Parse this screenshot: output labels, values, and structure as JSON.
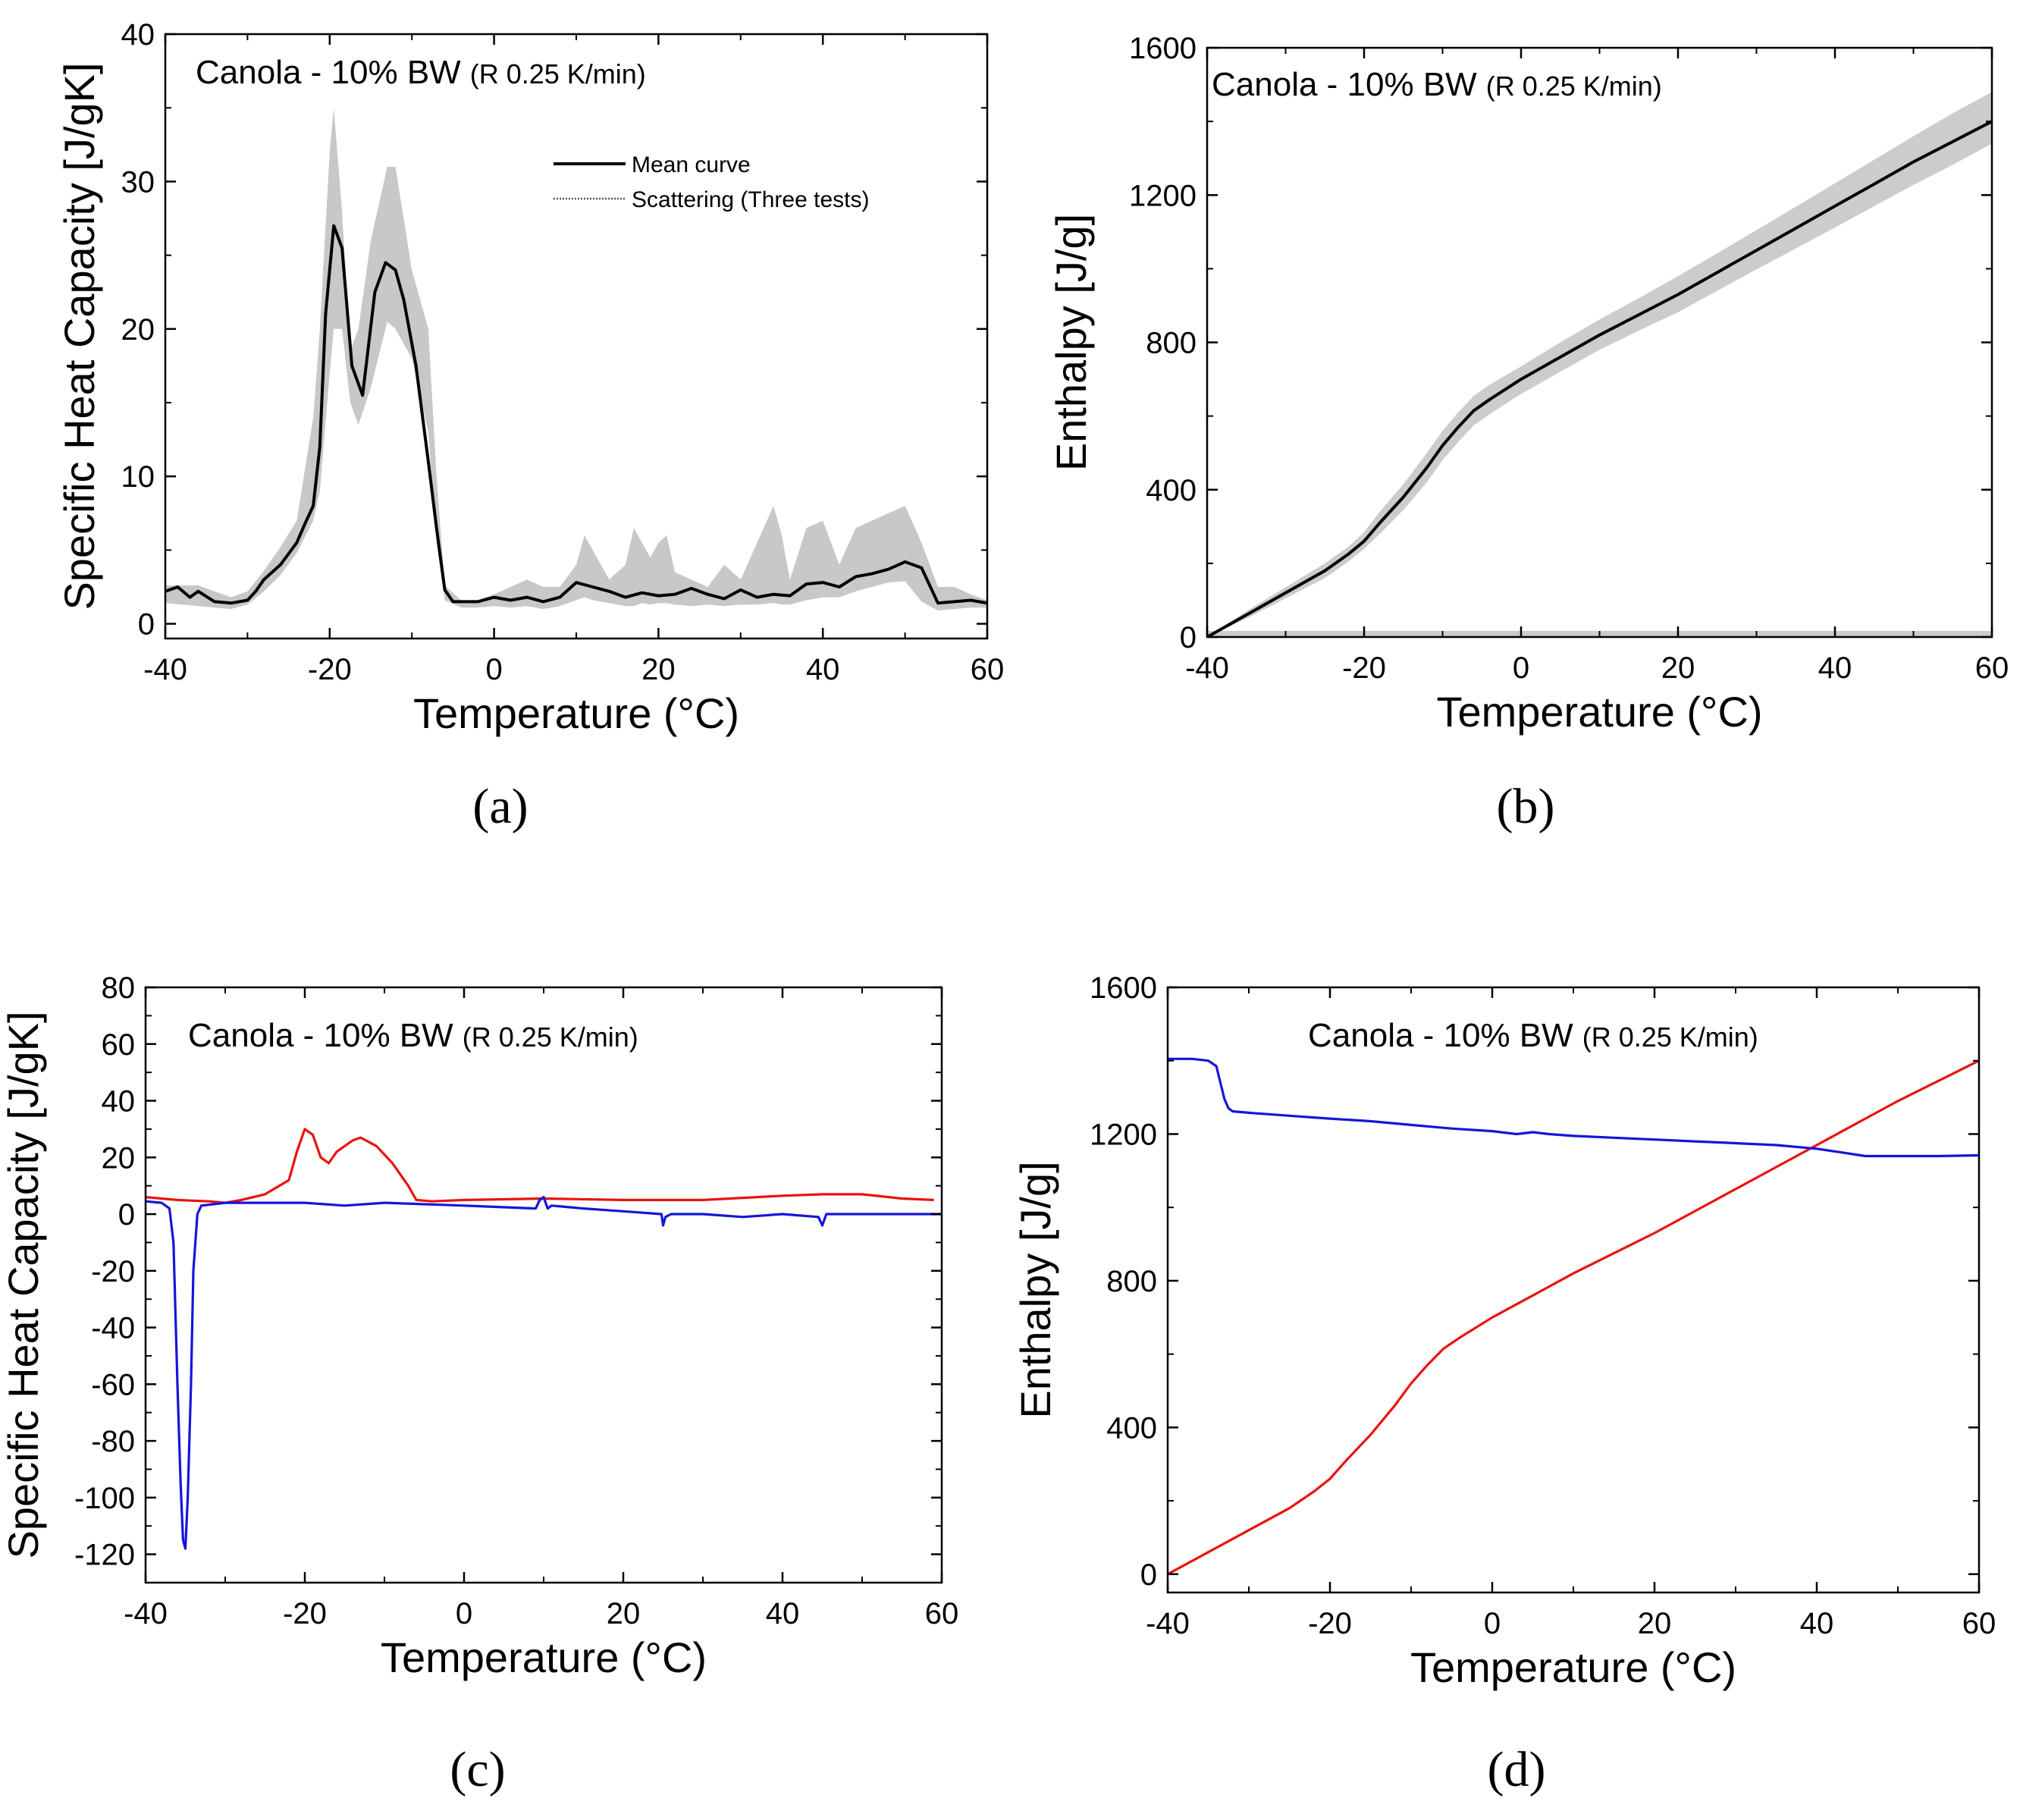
{
  "panels": [
    {
      "id": "a",
      "panel_label": "(a)",
      "annotation_main": "Canola - 10% BW",
      "annotation_rate": "(R 0.25 K/min)",
      "legend": {
        "mean": "Mean curve",
        "scatter": "Scattering (Three tests)"
      },
      "chart_data": {
        "type": "line",
        "xlabel": "Temperature (°C)",
        "ylabel": "Specific Heat Capacity [J/gK]",
        "xlim": [
          -40,
          60
        ],
        "ylim": [
          -1,
          40
        ],
        "xticks": [
          -40,
          -20,
          0,
          20,
          40,
          60
        ],
        "yticks": [
          0,
          10,
          20,
          30,
          40
        ],
        "grid": false,
        "series": [
          {
            "name": "Mean curve",
            "role": "mean",
            "color": "#000000",
            "x": [
              -40,
              -38.5,
              -37,
              -36,
              -34,
              -32,
              -30,
              -29,
              -28,
              -26,
              -24,
              -23,
              -22,
              -21.2,
              -20.5,
              -19.5,
              -18.5,
              -17.3,
              -16,
              -14.5,
              -13.2,
              -12,
              -11,
              -9.5,
              -8,
              -7,
              -6,
              -5,
              -4,
              -2,
              0,
              2,
              4,
              6,
              8,
              10,
              12,
              14,
              16,
              18,
              20,
              22,
              24,
              26,
              28,
              30,
              32,
              34,
              36,
              38,
              40,
              42,
              44,
              46,
              48,
              50,
              52,
              54,
              56,
              58,
              60
            ],
            "y": [
              2.2,
              2.5,
              1.8,
              2.2,
              1.5,
              1.4,
              1.6,
              2.2,
              3.0,
              4.0,
              5.5,
              6.8,
              8.0,
              12.0,
              21.0,
              27.0,
              25.5,
              17.5,
              15.5,
              22.5,
              24.5,
              24.0,
              22.0,
              17.5,
              11.0,
              6.5,
              2.3,
              1.5,
              1.5,
              1.5,
              1.8,
              1.6,
              1.8,
              1.5,
              1.8,
              2.8,
              2.5,
              2.2,
              1.8,
              2.1,
              1.9,
              2.0,
              2.4,
              2.0,
              1.7,
              2.3,
              1.8,
              2.0,
              1.9,
              2.7,
              2.8,
              2.5,
              3.2,
              3.4,
              3.7,
              4.2,
              3.8,
              1.4,
              1.5,
              1.6,
              1.4
            ]
          },
          {
            "name": "Scattering (Three tests)",
            "role": "band",
            "color": "#c8c8c8",
            "x": [
              -40,
              -36,
              -32,
              -30,
              -28,
              -26,
              -24,
              -22,
              -21.2,
              -20,
              -19.5,
              -18.5,
              -17.5,
              -16.5,
              -15,
              -13,
              -12,
              -10,
              -8,
              -7,
              -6,
              -4,
              -2,
              0,
              2,
              4,
              6,
              8,
              10,
              11,
              12,
              14,
              16,
              17,
              18,
              19,
              20,
              21,
              22,
              24,
              26,
              28,
              30,
              32,
              34,
              35,
              36,
              38,
              40,
              42,
              44,
              46,
              48,
              50,
              52,
              54,
              56,
              58,
              60
            ],
            "upper": [
              2.6,
              2.6,
              1.8,
              2.2,
              3.6,
              5.2,
              7.0,
              14.0,
              20.0,
              32.0,
              35.0,
              28.0,
              18.5,
              20.0,
              26.0,
              31.0,
              31.0,
              24.0,
              20.0,
              10.0,
              2.6,
              1.6,
              1.6,
              2.0,
              2.5,
              3.0,
              2.5,
              2.5,
              4.0,
              6.0,
              5.0,
              3.0,
              4.0,
              6.5,
              5.5,
              4.5,
              5.5,
              6.0,
              3.5,
              3.0,
              2.5,
              4.0,
              3.0,
              5.5,
              8.0,
              6.0,
              3.0,
              6.5,
              7.0,
              4.0,
              6.5,
              7.0,
              7.5,
              8.0,
              5.5,
              2.5,
              2.5,
              2.0,
              1.6
            ],
            "lower": [
              1.4,
              1.2,
              1.0,
              1.3,
              2.2,
              3.3,
              4.8,
              7.0,
              9.0,
              17.0,
              20.0,
              20.0,
              15.0,
              13.5,
              16.0,
              20.5,
              20.0,
              18.0,
              13.0,
              5.5,
              1.6,
              1.1,
              1.1,
              1.2,
              1.1,
              1.2,
              1.0,
              1.2,
              1.6,
              1.8,
              1.6,
              1.4,
              1.2,
              1.2,
              1.4,
              1.3,
              1.4,
              1.4,
              1.3,
              1.2,
              1.3,
              1.2,
              1.3,
              1.3,
              1.4,
              1.3,
              1.3,
              1.6,
              1.8,
              1.8,
              2.2,
              2.5,
              2.8,
              2.9,
              1.5,
              0.9,
              1.0,
              1.1,
              1.1
            ]
          }
        ]
      }
    },
    {
      "id": "b",
      "panel_label": "(b)",
      "annotation_main": "Canola - 10% BW",
      "annotation_rate": "(R 0.25 K/min)",
      "chart_data": {
        "type": "line",
        "xlabel": "Temperature (°C)",
        "ylabel": "Enthalpy [J/g]",
        "xlim": [
          -40,
          60
        ],
        "ylim": [
          0,
          1600
        ],
        "xticks": [
          -40,
          -20,
          0,
          20,
          40,
          60
        ],
        "yticks": [
          0,
          400,
          800,
          1200,
          1600
        ],
        "grid": false,
        "series": [
          {
            "role": "mean",
            "color": "#000000",
            "x": [
              -40,
              -35,
              -30,
              -25,
              -22,
              -20,
              -18,
              -15,
              -12,
              -10,
              -8,
              -6,
              -4,
              0,
              5,
              10,
              15,
              20,
              25,
              30,
              35,
              40,
              45,
              50,
              55,
              60
            ],
            "y": [
              0,
              60,
              120,
              180,
              225,
              260,
              310,
              380,
              460,
              520,
              570,
              615,
              645,
              700,
              760,
              820,
              875,
              930,
              990,
              1050,
              1110,
              1170,
              1230,
              1290,
              1345,
              1400
            ]
          },
          {
            "role": "band",
            "color": "#cccccc",
            "x": [
              -40,
              -35,
              -30,
              -25,
              -22,
              -20,
              -18,
              -15,
              -12,
              -10,
              -8,
              -6,
              -4,
              0,
              5,
              10,
              15,
              20,
              25,
              30,
              35,
              40,
              45,
              50,
              55,
              60
            ],
            "upper": [
              0,
              70,
              135,
              200,
              245,
              285,
              340,
              415,
              500,
              560,
              610,
              655,
              685,
              735,
              800,
              862,
              920,
              980,
              1042,
              1105,
              1168,
              1232,
              1296,
              1360,
              1422,
              1480
            ],
            "lower": [
              0,
              50,
              105,
              160,
              205,
              240,
              280,
              345,
              420,
              480,
              530,
              575,
              605,
              660,
              720,
              780,
              832,
              882,
              940,
              998,
              1055,
              1112,
              1170,
              1228,
              1282,
              1340
            ],
            "baseline": 0
          }
        ]
      }
    },
    {
      "id": "c",
      "panel_label": "(c)",
      "annotation_main": "Canola - 10% BW",
      "annotation_rate": "(R 0.25 K/min)",
      "chart_data": {
        "type": "line",
        "xlabel": "Temperature (°C)",
        "ylabel": "Specific Heat Capacity [J/gK]",
        "xlim": [
          -40,
          60
        ],
        "ylim": [
          -130,
          80
        ],
        "xticks": [
          -40,
          -20,
          0,
          20,
          40,
          60
        ],
        "yticks": [
          -120,
          -100,
          -80,
          -60,
          -40,
          -20,
          0,
          20,
          40,
          60,
          80
        ],
        "grid": false,
        "series": [
          {
            "role": "heating",
            "color": "#e8130e",
            "x": [
              -40,
              -36,
              -32,
              -30,
              -28,
              -25,
              -22,
              -21,
              -20,
              -19,
              -18,
              -17,
              -16,
              -14,
              -13,
              -11,
              -9,
              -7,
              -6,
              -4,
              0,
              10,
              20,
              30,
              40,
              45,
              50,
              55,
              59
            ],
            "y": [
              6,
              5,
              4.5,
              4,
              5,
              7,
              12,
              22,
              30,
              28,
              20,
              18,
              22,
              26,
              27,
              24,
              18,
              10,
              5,
              4.5,
              5,
              5.5,
              5,
              5,
              6.5,
              7,
              7,
              5.5,
              5
            ]
          },
          {
            "role": "cooling",
            "color": "#1515d8",
            "x": [
              -40,
              -38,
              -37,
              -36.5,
              -36,
              -35.6,
              -35.3,
              -35,
              -34.7,
              -34.3,
              -34,
              -33.5,
              -33,
              -30,
              -20,
              -15,
              -10,
              0,
              9,
              9.5,
              10,
              10.5,
              11,
              15,
              20,
              24.8,
              25,
              25.3,
              26,
              30,
              35,
              40,
              44.5,
              45,
              45.5,
              50,
              55,
              60
            ],
            "y": [
              4.5,
              4,
              2,
              -10,
              -60,
              -95,
              -115,
              -118,
              -100,
              -60,
              -20,
              0,
              3,
              4,
              4,
              3,
              4,
              3,
              2,
              5,
              6,
              2,
              3,
              2,
              1,
              0,
              -4,
              -1,
              0,
              0,
              -1,
              0,
              -1,
              -4,
              0,
              0,
              0,
              0
            ]
          }
        ]
      }
    },
    {
      "id": "d",
      "panel_label": "(d)",
      "annotation_main": "Canola - 10% BW",
      "annotation_rate": "(R 0.25 K/min)",
      "chart_data": {
        "type": "line",
        "xlabel": "Temperature (°C)",
        "ylabel": "Enthalpy [J/g]",
        "xlim": [
          -40,
          60
        ],
        "ylim": [
          -50,
          1600
        ],
        "xticks": [
          -40,
          -20,
          0,
          20,
          40,
          60
        ],
        "yticks": [
          0,
          400,
          800,
          1200,
          1600
        ],
        "grid": false,
        "series": [
          {
            "role": "heating",
            "color": "#e8130e",
            "x": [
              -40,
              -35,
              -30,
              -25,
              -22,
              -20,
              -18,
              -15,
              -12,
              -10,
              -8,
              -6,
              -4,
              0,
              5,
              10,
              15,
              20,
              25,
              30,
              35,
              40,
              45,
              50,
              55,
              60
            ],
            "y": [
              0,
              60,
              120,
              180,
              225,
              260,
              310,
              380,
              460,
              520,
              570,
              615,
              645,
              700,
              760,
              820,
              875,
              930,
              990,
              1050,
              1110,
              1170,
              1230,
              1290,
              1345,
              1400
            ]
          },
          {
            "role": "cooling",
            "color": "#1515d8",
            "x": [
              -40,
              -37,
              -35,
              -34,
              -33.5,
              -33,
              -32.5,
              -32,
              -30,
              -25,
              -20,
              -15,
              -10,
              -5,
              0,
              3,
              5,
              7,
              10,
              15,
              20,
              25,
              30,
              35,
              40,
              43,
              46,
              50,
              55,
              60
            ],
            "y": [
              1405,
              1405,
              1400,
              1385,
              1340,
              1295,
              1270,
              1262,
              1258,
              1250,
              1242,
              1235,
              1225,
              1215,
              1208,
              1200,
              1205,
              1200,
              1195,
              1190,
              1185,
              1180,
              1175,
              1170,
              1160,
              1150,
              1140,
              1140,
              1140,
              1142
            ]
          }
        ]
      }
    }
  ]
}
